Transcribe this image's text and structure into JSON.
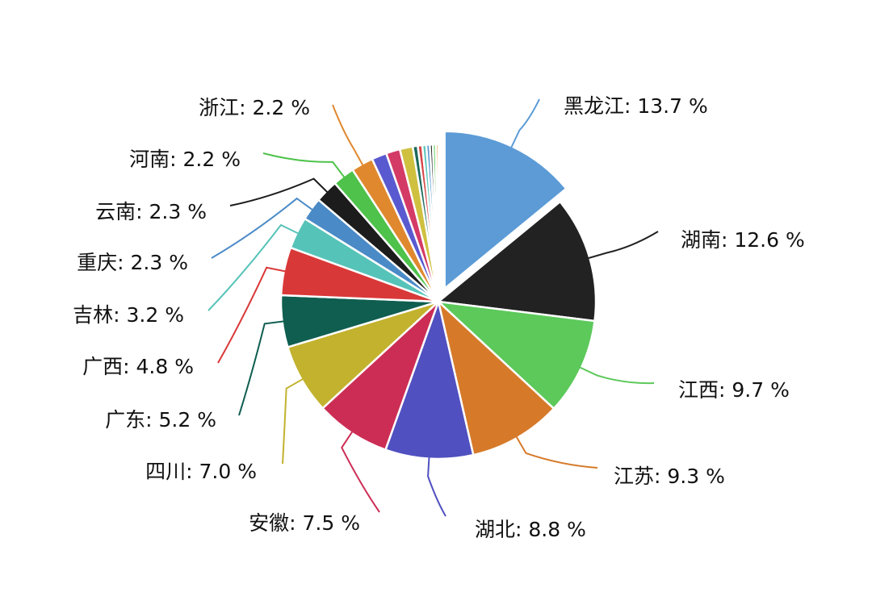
{
  "chart_data": {
    "type": "pie",
    "title": "",
    "slices": [
      {
        "label": "黑龙江",
        "value": 13.7,
        "display": "黑龙江: 13.7 %",
        "color": "#5c9bd6",
        "explode": true
      },
      {
        "label": "湖南",
        "value": 12.6,
        "display": "湖南: 12.6 %",
        "color": "#222222"
      },
      {
        "label": "江西",
        "value": 9.7,
        "display": "江西: 9.7 %",
        "color": "#5cc95a"
      },
      {
        "label": "江苏",
        "value": 9.3,
        "display": "江苏: 9.3 %",
        "color": "#d67a2a"
      },
      {
        "label": "湖北",
        "value": 8.8,
        "display": "湖北: 8.8 %",
        "color": "#5050c0"
      },
      {
        "label": "安徽",
        "value": 7.5,
        "display": "安徽: 7.5 %",
        "color": "#cc2d55"
      },
      {
        "label": "四川",
        "value": 7.0,
        "display": "四川: 7.0 %",
        "color": "#c2b22e"
      },
      {
        "label": "广东",
        "value": 5.2,
        "display": "广东: 5.2 %",
        "color": "#0f5e50"
      },
      {
        "label": "广西",
        "value": 4.8,
        "display": "广西: 4.8 %",
        "color": "#d93838"
      },
      {
        "label": "吉林",
        "value": 3.2,
        "display": "吉林: 3.2 %",
        "color": "#56c3b8"
      },
      {
        "label": "重庆",
        "value": 2.3,
        "display": "重庆: 2.3 %",
        "color": "#4a8ac6"
      },
      {
        "label": "云南",
        "value": 2.3,
        "display": "云南: 2.3 %",
        "color": "#1c1c1c"
      },
      {
        "label": "河南",
        "value": 2.2,
        "display": "河南: 2.2 %",
        "color": "#4ec24a"
      },
      {
        "label": "浙江",
        "value": 2.2,
        "display": "浙江: 2.2 %",
        "color": "#e0882e"
      },
      {
        "label": "",
        "value": 1.5,
        "display": "",
        "color": "#5a5ad0"
      },
      {
        "label": "",
        "value": 1.4,
        "display": "",
        "color": "#d43a66"
      },
      {
        "label": "",
        "value": 1.3,
        "display": "",
        "color": "#cfc040"
      },
      {
        "label": "",
        "value": 0.5,
        "display": "",
        "color": "#1b6a5a"
      },
      {
        "label": "",
        "value": 0.45,
        "display": "",
        "color": "#d64848"
      },
      {
        "label": "",
        "value": 0.4,
        "display": "",
        "color": "#62c9be"
      },
      {
        "label": "",
        "value": 0.35,
        "display": "",
        "color": "#5796cf"
      },
      {
        "label": "",
        "value": 0.3,
        "display": "",
        "color": "#333333"
      },
      {
        "label": "",
        "value": 0.3,
        "display": "",
        "color": "#5fcf5c"
      },
      {
        "label": "",
        "value": 0.25,
        "display": "",
        "color": "#e69a4a"
      }
    ]
  }
}
